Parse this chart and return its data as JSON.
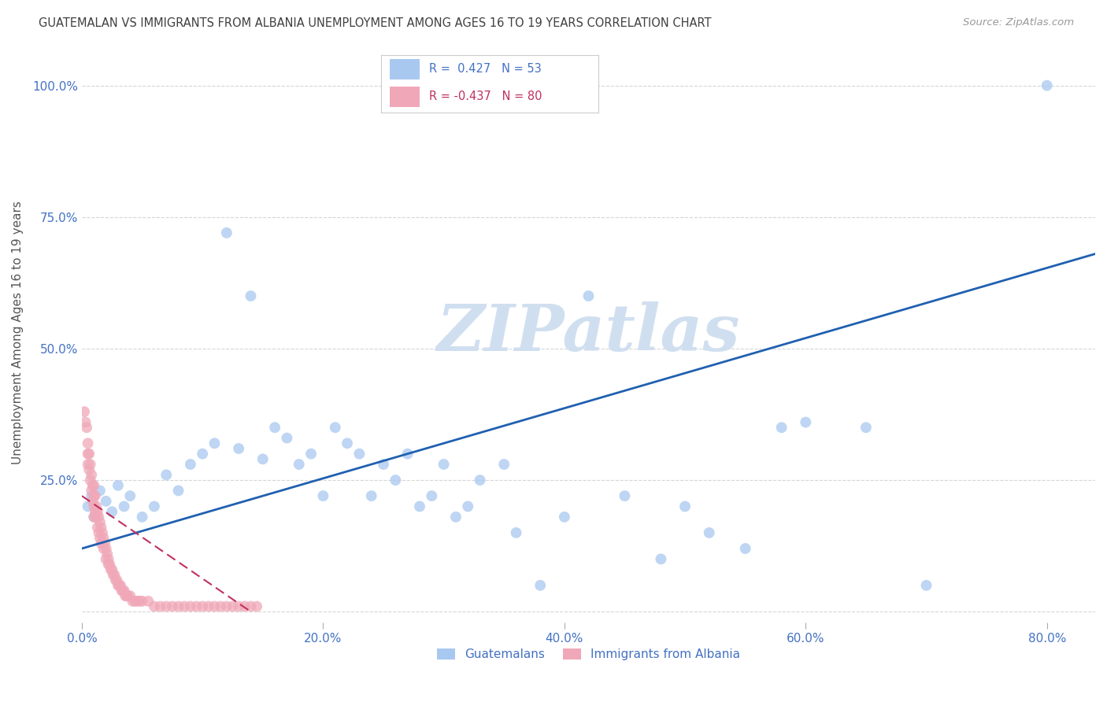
{
  "title": "GUATEMALAN VS IMMIGRANTS FROM ALBANIA UNEMPLOYMENT AMONG AGES 16 TO 19 YEARS CORRELATION CHART",
  "source": "Source: ZipAtlas.com",
  "ylabel": "Unemployment Among Ages 16 to 19 years",
  "legend_blue_r": "0.427",
  "legend_blue_n": "53",
  "legend_pink_r": "-0.437",
  "legend_pink_n": "80",
  "blue_color": "#a8c8f0",
  "pink_color": "#f0a8b8",
  "line_blue_color": "#2060b0",
  "line_pink_color": "#c03060",
  "background_color": "#ffffff",
  "grid_color": "#cccccc",
  "title_color": "#404040",
  "axis_label_color": "#4472c4",
  "watermark_color": "#d0dff0",
  "xlim": [
    0.0,
    0.84
  ],
  "ylim": [
    -0.02,
    1.08
  ],
  "x_ticks": [
    0.0,
    0.2,
    0.4,
    0.6,
    0.8
  ],
  "y_ticks": [
    0.0,
    0.25,
    0.5,
    0.75,
    1.0
  ],
  "blue_line_x0": 0.0,
  "blue_line_y0": 0.12,
  "blue_line_x1": 0.84,
  "blue_line_y1": 0.68,
  "pink_line_x0": 0.0,
  "pink_line_y0": 0.22,
  "pink_line_x1": 0.14,
  "pink_line_y1": 0.0,
  "blue_scatter_x": [
    0.005,
    0.008,
    0.01,
    0.015,
    0.02,
    0.025,
    0.03,
    0.035,
    0.04,
    0.05,
    0.06,
    0.07,
    0.08,
    0.09,
    0.1,
    0.11,
    0.12,
    0.13,
    0.14,
    0.15,
    0.16,
    0.17,
    0.18,
    0.19,
    0.2,
    0.21,
    0.22,
    0.23,
    0.24,
    0.25,
    0.26,
    0.27,
    0.28,
    0.29,
    0.3,
    0.31,
    0.32,
    0.33,
    0.35,
    0.36,
    0.38,
    0.4,
    0.42,
    0.45,
    0.48,
    0.5,
    0.52,
    0.55,
    0.58,
    0.6,
    0.65,
    0.7,
    0.8
  ],
  "blue_scatter_y": [
    0.2,
    0.22,
    0.18,
    0.23,
    0.21,
    0.19,
    0.24,
    0.2,
    0.22,
    0.18,
    0.2,
    0.26,
    0.23,
    0.28,
    0.3,
    0.32,
    0.72,
    0.31,
    0.6,
    0.29,
    0.35,
    0.33,
    0.28,
    0.3,
    0.22,
    0.35,
    0.32,
    0.3,
    0.22,
    0.28,
    0.25,
    0.3,
    0.2,
    0.22,
    0.28,
    0.18,
    0.2,
    0.25,
    0.28,
    0.15,
    0.05,
    0.18,
    0.6,
    0.22,
    0.1,
    0.2,
    0.15,
    0.12,
    0.35,
    0.36,
    0.35,
    0.05,
    1.0
  ],
  "pink_scatter_x": [
    0.002,
    0.003,
    0.004,
    0.005,
    0.005,
    0.005,
    0.006,
    0.006,
    0.007,
    0.007,
    0.008,
    0.008,
    0.009,
    0.009,
    0.01,
    0.01,
    0.01,
    0.01,
    0.011,
    0.011,
    0.012,
    0.012,
    0.013,
    0.013,
    0.014,
    0.014,
    0.015,
    0.015,
    0.016,
    0.016,
    0.017,
    0.018,
    0.018,
    0.019,
    0.02,
    0.02,
    0.021,
    0.022,
    0.022,
    0.023,
    0.024,
    0.025,
    0.026,
    0.027,
    0.028,
    0.029,
    0.03,
    0.031,
    0.032,
    0.033,
    0.034,
    0.035,
    0.036,
    0.037,
    0.038,
    0.04,
    0.042,
    0.044,
    0.046,
    0.048,
    0.05,
    0.055,
    0.06,
    0.065,
    0.07,
    0.075,
    0.08,
    0.085,
    0.09,
    0.095,
    0.1,
    0.105,
    0.11,
    0.115,
    0.12,
    0.125,
    0.13,
    0.135,
    0.14,
    0.145
  ],
  "pink_scatter_y": [
    0.38,
    0.36,
    0.35,
    0.32,
    0.3,
    0.28,
    0.3,
    0.27,
    0.28,
    0.25,
    0.26,
    0.23,
    0.24,
    0.21,
    0.22,
    0.2,
    0.24,
    0.18,
    0.22,
    0.19,
    0.2,
    0.18,
    0.19,
    0.16,
    0.18,
    0.15,
    0.17,
    0.14,
    0.16,
    0.13,
    0.15,
    0.14,
    0.12,
    0.13,
    0.12,
    0.1,
    0.11,
    0.1,
    0.09,
    0.09,
    0.08,
    0.08,
    0.07,
    0.07,
    0.06,
    0.06,
    0.05,
    0.05,
    0.05,
    0.04,
    0.04,
    0.04,
    0.03,
    0.03,
    0.03,
    0.03,
    0.02,
    0.02,
    0.02,
    0.02,
    0.02,
    0.02,
    0.01,
    0.01,
    0.01,
    0.01,
    0.01,
    0.01,
    0.01,
    0.01,
    0.01,
    0.01,
    0.01,
    0.01,
    0.01,
    0.01,
    0.01,
    0.01,
    0.01,
    0.01
  ]
}
